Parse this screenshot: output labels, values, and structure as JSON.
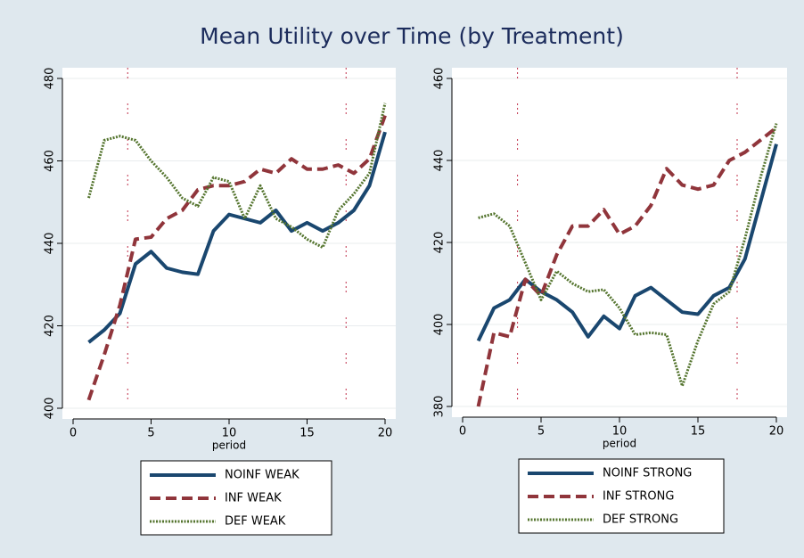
{
  "title": "Mean Utility over Time (by Treatment)",
  "chart_data": [
    {
      "type": "line",
      "xlabel": "period",
      "x": [
        1,
        2,
        3,
        4,
        5,
        6,
        7,
        8,
        9,
        10,
        11,
        12,
        13,
        14,
        15,
        16,
        17,
        18,
        19,
        20
      ],
      "xlim": [
        0,
        20
      ],
      "xticks": [
        0,
        5,
        10,
        15,
        20
      ],
      "ylim": [
        400,
        480
      ],
      "yticks": [
        400,
        420,
        440,
        460,
        480
      ],
      "grid": true,
      "legend": "bottom",
      "vlines": [
        3.5,
        17.5
      ],
      "vline_color": "#c0304a",
      "series": [
        {
          "name": "NOINF WEAK",
          "color": "#1a476f",
          "style": "solid",
          "values": [
            416,
            419,
            423,
            435,
            438,
            434,
            433,
            432.5,
            443,
            447,
            446,
            445,
            448,
            443,
            445,
            443,
            445,
            448,
            454,
            467
          ]
        },
        {
          "name": "INF WEAK",
          "color": "#90353b",
          "style": "dashed",
          "values": [
            402,
            413,
            425,
            441,
            441.5,
            446,
            448,
            453,
            454,
            454,
            455,
            458,
            457,
            460.5,
            458,
            458,
            459,
            457,
            460.5,
            471
          ]
        },
        {
          "name": "DEF WEAK",
          "color": "#55752f",
          "style": "crosses",
          "values": [
            451,
            465,
            466,
            465,
            460,
            456,
            451,
            449,
            456,
            455,
            446,
            454,
            446,
            444,
            441,
            439,
            448,
            452,
            457,
            474
          ]
        }
      ]
    },
    {
      "type": "line",
      "xlabel": "period",
      "x": [
        1,
        2,
        3,
        4,
        5,
        6,
        7,
        8,
        9,
        10,
        11,
        12,
        13,
        14,
        15,
        16,
        17,
        18,
        19,
        20
      ],
      "xlim": [
        0,
        20
      ],
      "xticks": [
        0,
        5,
        10,
        15,
        20
      ],
      "ylim": [
        380,
        460
      ],
      "yticks": [
        380,
        400,
        420,
        440,
        460
      ],
      "grid": true,
      "legend": "bottom",
      "vlines": [
        3.5,
        17.5
      ],
      "vline_color": "#c0304a",
      "series": [
        {
          "name": "NOINF STRONG",
          "color": "#1a476f",
          "style": "solid",
          "values": [
            396,
            404,
            406,
            411,
            408,
            406,
            403,
            397,
            402,
            399,
            407,
            409,
            406,
            403,
            402.5,
            407,
            409,
            416,
            430,
            444
          ]
        },
        {
          "name": "INF STRONG",
          "color": "#90353b",
          "style": "dashed",
          "values": [
            380,
            398,
            397,
            411,
            407,
            417,
            424,
            424,
            428,
            422,
            424,
            429,
            438,
            434,
            433,
            434,
            440,
            442,
            445,
            448
          ]
        },
        {
          "name": "DEF STRONG",
          "color": "#55752f",
          "style": "crosses",
          "values": [
            426,
            427,
            424,
            415,
            406,
            413,
            410,
            408,
            408.5,
            404,
            397.5,
            398,
            397.5,
            385,
            396,
            405,
            408,
            421,
            436,
            449
          ]
        }
      ]
    }
  ]
}
